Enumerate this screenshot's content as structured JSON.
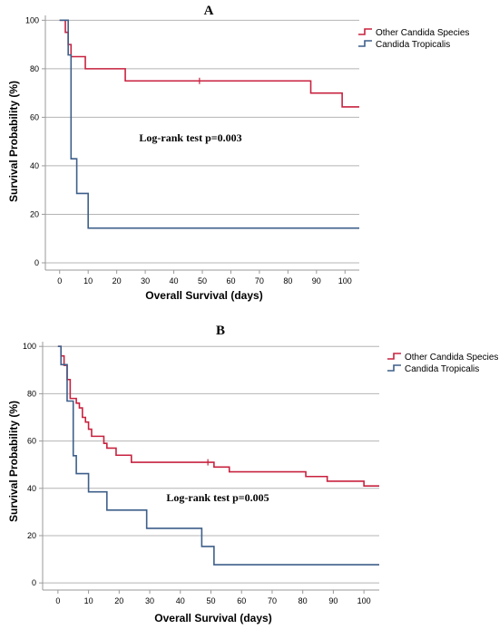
{
  "colors": {
    "other": "#c8223f",
    "tropicalis": "#3d5f8a",
    "grid": "#b4b4b4",
    "axis": "#9a9a9a"
  },
  "chart_data": [
    {
      "type": "line",
      "panel": "A",
      "xlabel": "Overall Survival (days)",
      "ylabel": "Survival Probability (%)",
      "xlim": [
        -5,
        105
      ],
      "ylim": [
        -3,
        102
      ],
      "xticks": [
        0,
        10,
        20,
        30,
        40,
        50,
        60,
        70,
        80,
        90,
        100
      ],
      "yticks": [
        0,
        20,
        40,
        60,
        80,
        100
      ],
      "grid": "horizontal",
      "legend_position": "top-right",
      "annotation": "Log-rank test p=0.003",
      "series": [
        {
          "name": "Other Candida Species",
          "steps": [
            [
              0,
              100
            ],
            [
              2,
              95
            ],
            [
              3,
              90
            ],
            [
              4,
              85
            ],
            [
              9,
              80
            ],
            [
              23,
              75
            ],
            [
              88,
              70
            ],
            [
              99,
              64.3
            ],
            [
              105,
              64.3
            ]
          ],
          "censored": [
            [
              49,
              75
            ]
          ]
        },
        {
          "name": "Candida Tropicalis",
          "steps": [
            [
              0,
              100
            ],
            [
              3,
              85.7
            ],
            [
              4,
              42.9
            ],
            [
              6,
              28.6
            ],
            [
              10,
              14.3
            ],
            [
              105,
              14.3
            ]
          ],
          "censored": []
        }
      ]
    },
    {
      "type": "line",
      "panel": "B",
      "xlabel": "Overall Survival (days)",
      "ylabel": "Survival Probability (%)",
      "xlim": [
        -5,
        105
      ],
      "ylim": [
        -3,
        102
      ],
      "xticks": [
        0,
        10,
        20,
        30,
        40,
        50,
        60,
        70,
        80,
        90,
        100
      ],
      "yticks": [
        0,
        20,
        40,
        60,
        80,
        100
      ],
      "grid": "horizontal",
      "legend_position": "top-right",
      "annotation": "Log-rank test p=0.005",
      "series": [
        {
          "name": "Other Candida Species",
          "steps": [
            [
              0,
              100
            ],
            [
              1,
              96
            ],
            [
              2,
              92
            ],
            [
              3,
              86
            ],
            [
              4,
              78
            ],
            [
              6,
              76
            ],
            [
              7,
              74
            ],
            [
              8,
              70
            ],
            [
              9,
              68
            ],
            [
              10,
              65
            ],
            [
              11,
              62
            ],
            [
              15,
              59
            ],
            [
              16,
              57
            ],
            [
              19,
              54
            ],
            [
              24,
              51
            ],
            [
              51,
              49
            ],
            [
              56,
              47
            ],
            [
              81,
              45
            ],
            [
              88,
              43
            ],
            [
              100,
              41
            ],
            [
              105,
              41
            ]
          ],
          "censored": [
            [
              49,
              51
            ]
          ]
        },
        {
          "name": "Candida Tropicalis",
          "steps": [
            [
              0,
              100
            ],
            [
              1,
              92.3
            ],
            [
              3,
              76.9
            ],
            [
              5,
              53.8
            ],
            [
              6,
              46.2
            ],
            [
              10,
              38.5
            ],
            [
              16,
              30.8
            ],
            [
              29,
              23.1
            ],
            [
              47,
              15.4
            ],
            [
              51,
              7.7
            ],
            [
              105,
              7.7
            ]
          ],
          "censored": []
        }
      ]
    }
  ]
}
